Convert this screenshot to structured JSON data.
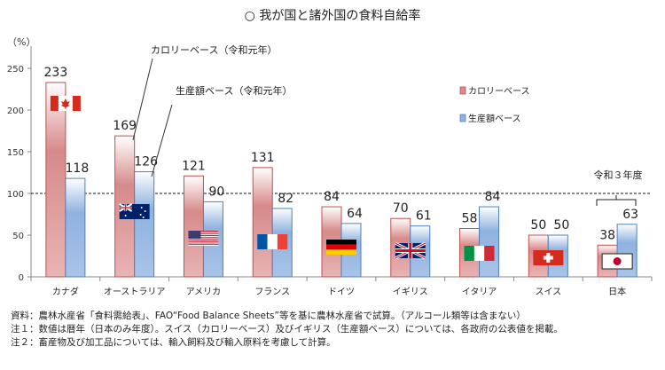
{
  "chart_data": {
    "type": "bar",
    "title": "○ 我が国と諸外国の食料自給率",
    "ylabel": "（%）",
    "ylim": [
      0,
      250
    ],
    "yticks": [
      0,
      50,
      100,
      150,
      200,
      250
    ],
    "reference_line": 100,
    "categories": [
      "カナダ",
      "オーストラリア",
      "アメリカ",
      "フランス",
      "ドイツ",
      "イギリス",
      "イタリア",
      "スイス",
      "日本"
    ],
    "flags": [
      "canada-flag",
      "australia-flag",
      "usa-flag",
      "france-flag",
      "germany-flag",
      "uk-flag",
      "italy-flag",
      "switzerland-flag",
      "japan-flag"
    ],
    "series": [
      {
        "name": "カロリーベース",
        "color": "#d98c8c",
        "edge": "#c0504d",
        "values": [
          233,
          169,
          121,
          131,
          84,
          70,
          58,
          50,
          38
        ]
      },
      {
        "name": "生産額ベース",
        "color": "#8db3e2",
        "edge": "#4f81bd",
        "values": [
          118,
          126,
          90,
          82,
          64,
          61,
          84,
          50,
          63
        ]
      }
    ],
    "legend": {
      "placement": "right"
    },
    "annotations": {
      "calorie_callout": "カロリーベース（令和元年）",
      "production_callout": "生産額ベース（令和元年）",
      "japan_note": "令和３年度"
    }
  },
  "notes": [
    "資料：農林水産省「食料需給表」、FAO“Food Balance Sheets”等を基に農林水産省で試算。（アルコール類等は含まない）",
    "注１：数値は暦年（日本のみ年度）。スイス（カロリーベース）及びイギリス（生産額ベース）については、各政府の公表値を掲載。",
    "注２：畜産物及び加工品については、輸入飼料及び輸入原料を考慮して計算。"
  ]
}
